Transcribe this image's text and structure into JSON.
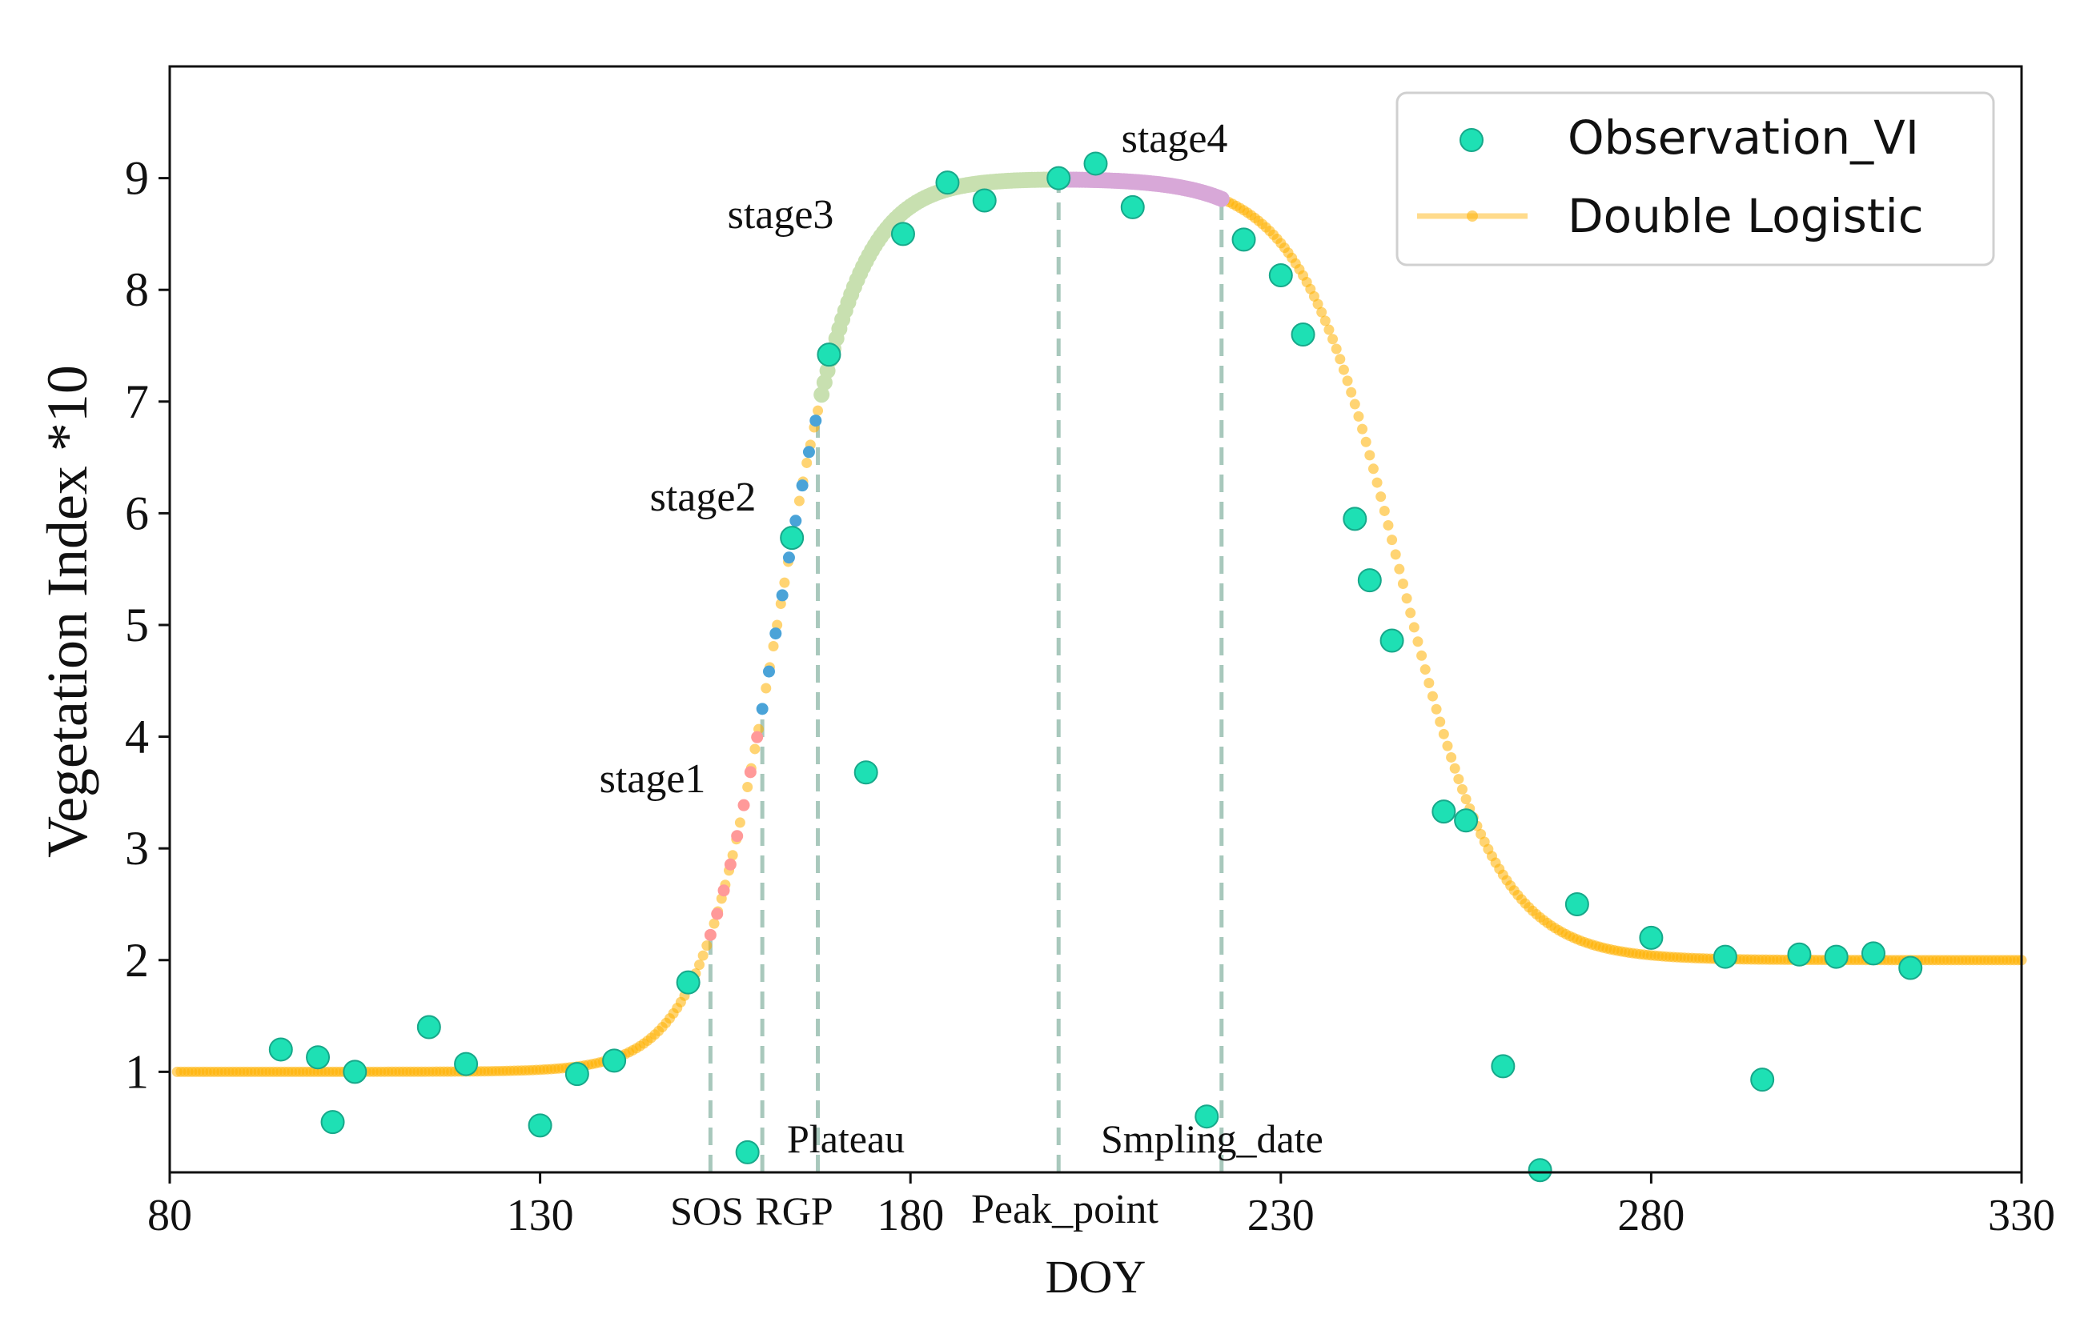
{
  "chart_data": {
    "type": "scatter",
    "title": "",
    "xlabel": "DOY",
    "ylabel": "Vegetation Index *10",
    "xlim": [
      80,
      330
    ],
    "ylim": [
      0.1,
      10.0
    ],
    "xticks": [
      80,
      130,
      180,
      230,
      280,
      330
    ],
    "yticks": [
      1,
      2,
      3,
      4,
      5,
      6,
      7,
      8,
      9
    ],
    "grid": false,
    "legend_position": "top-right",
    "colors": {
      "observation": "#1ee0b4",
      "observation_edge": "#17a88a",
      "curve": "#ffb000",
      "stage1": "#ff9999",
      "stage2": "#4aa3d8",
      "stage3": "#c8e0b0",
      "stage4": "#d8a8d8",
      "vline": "#a8c8bc"
    },
    "series": [
      {
        "name": "Observation_VI",
        "kind": "scatter",
        "points": [
          [
            95,
            1.2
          ],
          [
            100,
            1.13
          ],
          [
            102,
            0.55
          ],
          [
            105,
            1.0
          ],
          [
            115,
            1.4
          ],
          [
            120,
            1.07
          ],
          [
            130,
            0.52
          ],
          [
            135,
            0.98
          ],
          [
            140,
            1.1
          ],
          [
            150,
            1.8
          ],
          [
            158,
            0.28
          ],
          [
            164,
            5.78
          ],
          [
            169,
            7.42
          ],
          [
            174,
            3.68
          ],
          [
            179,
            8.5
          ],
          [
            185,
            8.96
          ],
          [
            190,
            8.8
          ],
          [
            200,
            9.0
          ],
          [
            205,
            9.13
          ],
          [
            210,
            8.74
          ],
          [
            220,
            0.6
          ],
          [
            225,
            8.45
          ],
          [
            230,
            8.13
          ],
          [
            233,
            7.6
          ],
          [
            240,
            5.95
          ],
          [
            242,
            5.4
          ],
          [
            245,
            4.86
          ],
          [
            252,
            3.33
          ],
          [
            255,
            3.25
          ],
          [
            260,
            1.05
          ],
          [
            265,
            0.12
          ],
          [
            270,
            2.5
          ],
          [
            280,
            2.2
          ],
          [
            290,
            2.03
          ],
          [
            295,
            0.93
          ],
          [
            300,
            2.05
          ],
          [
            305,
            2.03
          ],
          [
            310,
            2.06
          ],
          [
            315,
            1.93
          ]
        ]
      },
      {
        "name": "Double Logistic",
        "kind": "curve",
        "model": {
          "vmin": 1.0,
          "vmax": 9.0,
          "vend": 2.0,
          "sos_mid": 162.0,
          "sos_rate": 0.19,
          "eos_mid": 246.0,
          "eos_rate": 0.15
        }
      }
    ],
    "stages": [
      {
        "label": "stage1",
        "from": 153,
        "to": 160
      },
      {
        "label": "stage2",
        "from": 160,
        "to": 168
      },
      {
        "label": "stage3",
        "from": 168,
        "to": 200
      },
      {
        "label": "stage4",
        "from": 200,
        "to": 222
      }
    ],
    "vlines": [
      {
        "x": 153,
        "label": "SOS"
      },
      {
        "x": 160,
        "label": "RGP"
      },
      {
        "x": 167.5,
        "label": "Plateau"
      },
      {
        "x": 200,
        "label": "Peak_point"
      },
      {
        "x": 222,
        "label": "Smpling_date"
      }
    ]
  }
}
